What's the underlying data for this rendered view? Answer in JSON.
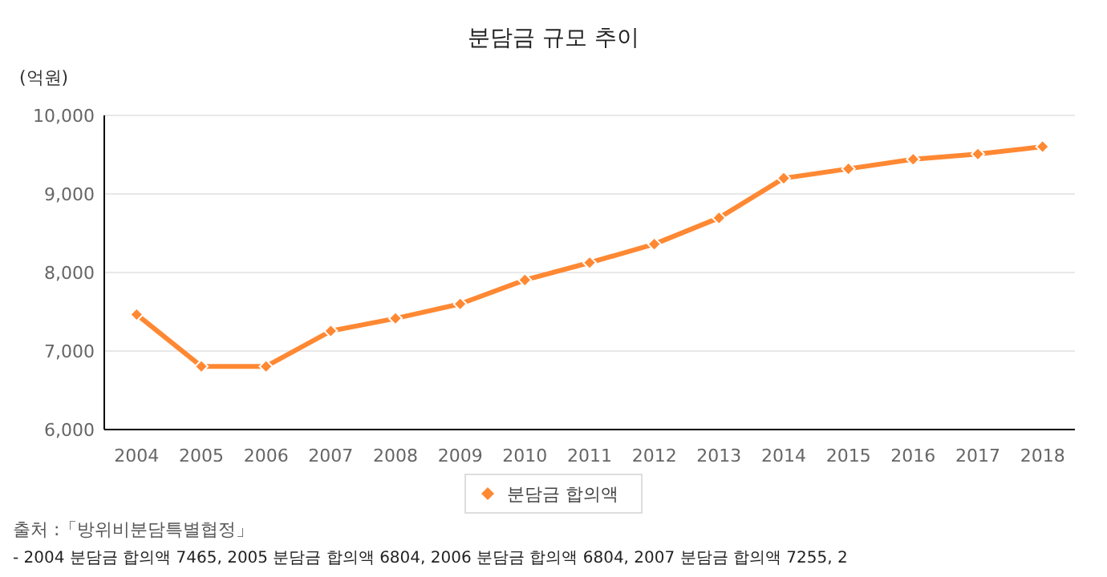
{
  "chart_data": {
    "type": "line",
    "title": "분담금 규모 추이",
    "ylabel": "(억원)",
    "categories": [
      "2004",
      "2005",
      "2006",
      "2007",
      "2008",
      "2009",
      "2010",
      "2011",
      "2012",
      "2013",
      "2014",
      "2015",
      "2016",
      "2017",
      "2018"
    ],
    "series": [
      {
        "name": "분담금 합의액",
        "color": "#ff8833",
        "values": [
          7465,
          6804,
          6804,
          7255,
          7415,
          7600,
          7904,
          8125,
          8361,
          8695,
          9200,
          9320,
          9441,
          9507,
          9602
        ]
      }
    ],
    "ylim": [
      6000,
      10000
    ],
    "yticks": [
      {
        "value": 6000,
        "label": "6,000"
      },
      {
        "value": 7000,
        "label": "7,000"
      },
      {
        "value": 8000,
        "label": "8,000"
      },
      {
        "value": 9000,
        "label": "9,000"
      },
      {
        "value": 10000,
        "label": "10,000"
      }
    ],
    "grid": "y",
    "legend": "bottom",
    "marker": "diamond",
    "line_style": "solid",
    "annotations": [
      "출처 :「방위비분담특별협정」",
      "- 2004 분담금 합의액 7465, 2005 분담금 합의액 6804, 2006 분담금 합의액 6804, 2007 분담금 합의액 7255, 2"
    ]
  }
}
